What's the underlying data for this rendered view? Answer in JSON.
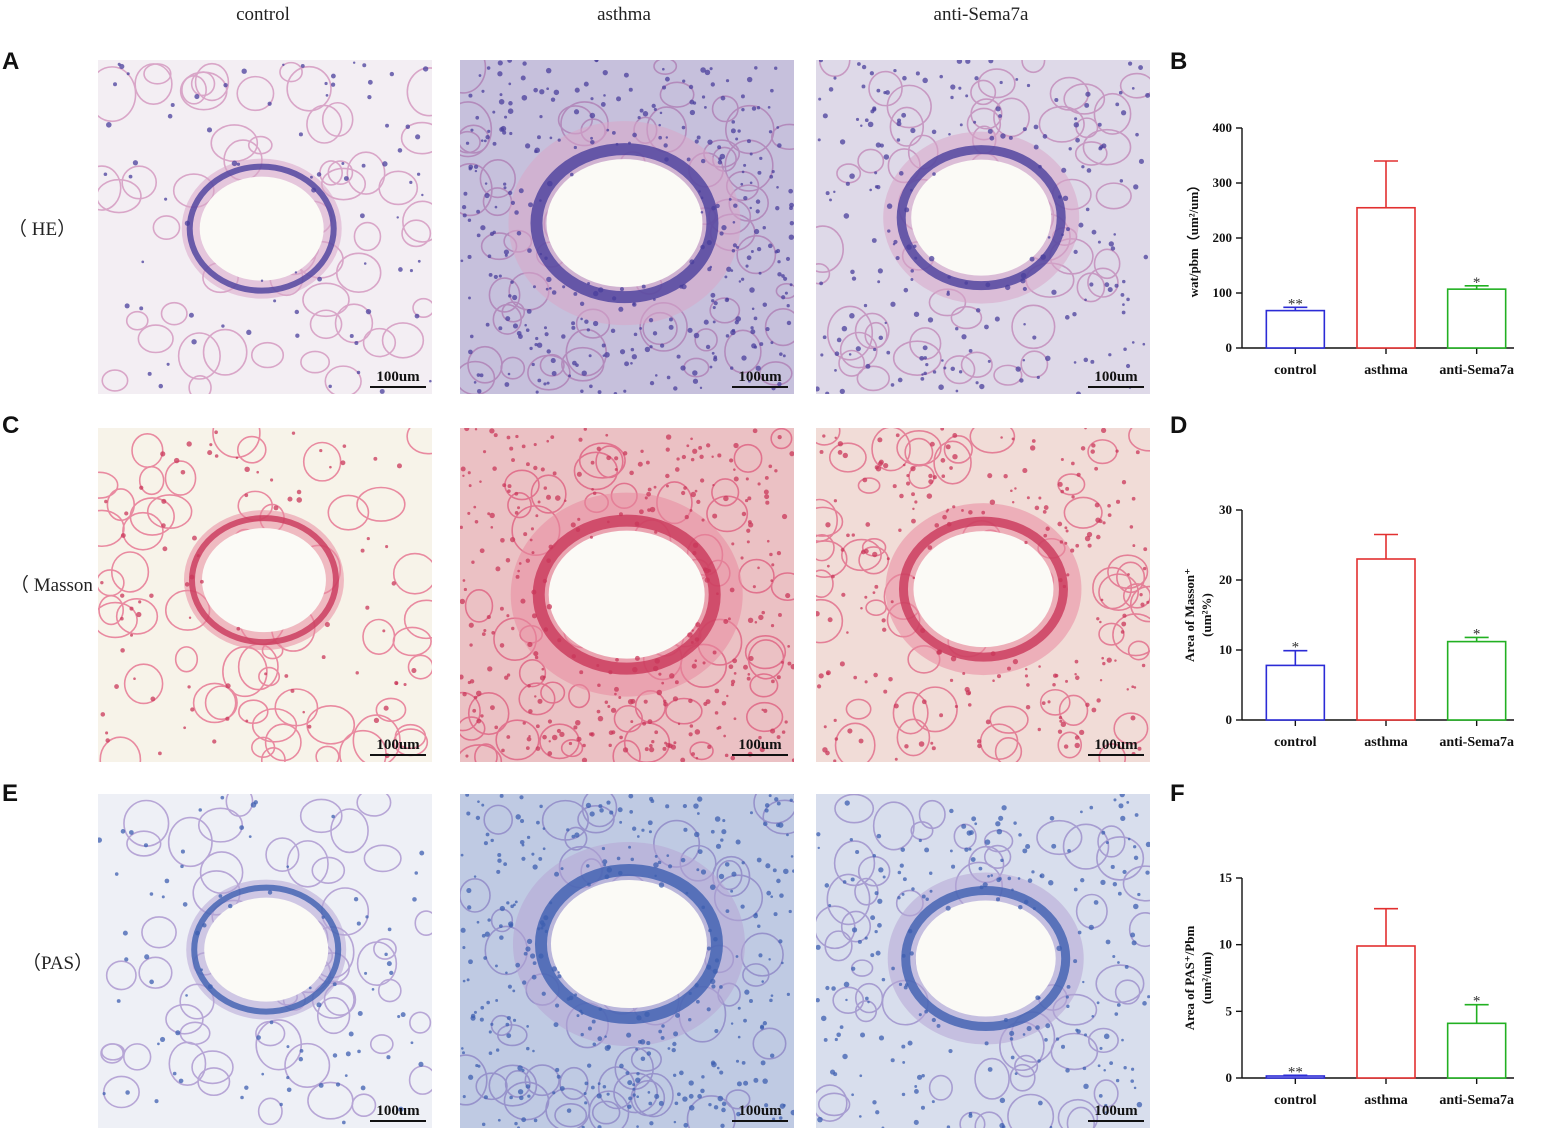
{
  "column_headers": [
    "control",
    "asthma",
    "anti-Sema7a"
  ],
  "panel_letters": {
    "A": "A",
    "B": "B",
    "C": "C",
    "D": "D",
    "E": "E",
    "F": "F"
  },
  "stain_labels": [
    "（ HE）",
    "（ Masson",
    "（PAS）"
  ],
  "scale_bar": "100um",
  "colors": {
    "control": "#2b2bd6",
    "asthma": "#e23030",
    "anti": "#22b022",
    "he_bg": "#f3eef3",
    "he_cell": "#4a3f9c",
    "he_tissue": "#d9a6c8",
    "masson_bg": "#f7f3e9",
    "masson_cell": "#c9375a",
    "masson_tissue": "#e98aa0",
    "pas_bg": "#eef0f6",
    "pas_cell": "#3d5fb0",
    "pas_tissue": "#b7a6d6"
  },
  "chart_data": [
    {
      "type": "bar",
      "panel": "B",
      "categories": [
        "control",
        "asthma",
        "anti-Sema7a"
      ],
      "values": [
        68,
        255,
        107
      ],
      "errors": [
        6,
        85,
        6
      ],
      "significance": [
        "**",
        "",
        "*"
      ],
      "ylim": [
        0,
        400
      ],
      "yticks": [
        0,
        100,
        200,
        300,
        400
      ],
      "ylabel": "wat/pbm（um²/um）"
    },
    {
      "type": "bar",
      "panel": "D",
      "categories": [
        "control",
        "asthma",
        "anti-Sema7a"
      ],
      "values": [
        7.8,
        23,
        11.2
      ],
      "errors": [
        2.1,
        3.5,
        0.6
      ],
      "significance": [
        "*",
        "",
        "*"
      ],
      "ylim": [
        0,
        30
      ],
      "yticks": [
        0,
        10,
        20,
        30
      ],
      "ylabel_line1": "Area of Masson⁺",
      "ylabel_line2": "(um²%)"
    },
    {
      "type": "bar",
      "panel": "F",
      "categories": [
        "control",
        "asthma",
        "anti-Sema7a"
      ],
      "values": [
        0.15,
        9.9,
        4.1
      ],
      "errors": [
        0.05,
        2.8,
        1.4
      ],
      "significance": [
        "**",
        "",
        "*"
      ],
      "ylim": [
        0,
        15
      ],
      "yticks": [
        0,
        5,
        10,
        15
      ],
      "ylabel_line1": "Area of PAS⁺/Pbm",
      "ylabel_line2": "(um²/um)"
    }
  ]
}
